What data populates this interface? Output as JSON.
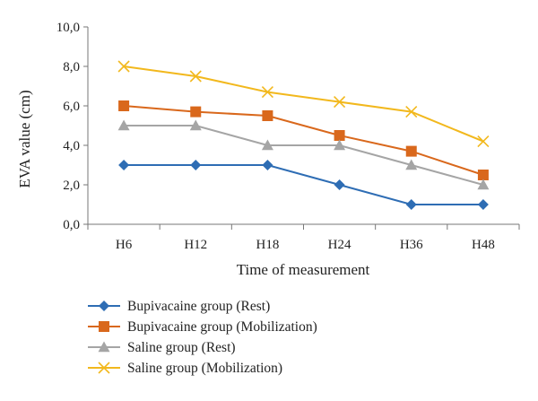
{
  "chart_data": {
    "type": "line",
    "categories": [
      "H6",
      "H12",
      "H18",
      "H24",
      "H36",
      "H48"
    ],
    "xlabel": "Time of measurement",
    "ylabel": "EVA value (cm)",
    "ylim": [
      0,
      10
    ],
    "yticks": [
      "0,0",
      "2,0",
      "4,0",
      "6,0",
      "8,0",
      "10,0"
    ],
    "grid": false,
    "legend_position": "bottom",
    "series": [
      {
        "name": "Bupivacaine group (Rest)",
        "color": "#2E6DB4",
        "marker": "diamond",
        "values": [
          3.0,
          3.0,
          3.0,
          2.0,
          1.0,
          1.0
        ]
      },
      {
        "name": "Bupivacaine group (Mobilization)",
        "color": "#D9681C",
        "marker": "square",
        "values": [
          6.0,
          5.7,
          5.5,
          4.5,
          3.7,
          2.5
        ]
      },
      {
        "name": "Saline group (Rest)",
        "color": "#A5A5A5",
        "marker": "triangle",
        "values": [
          5.0,
          5.0,
          4.0,
          4.0,
          3.0,
          2.0
        ]
      },
      {
        "name": "Saline group (Mobilization)",
        "color": "#F2B81D",
        "marker": "x",
        "values": [
          8.0,
          7.5,
          6.7,
          6.2,
          5.7,
          4.2
        ]
      }
    ]
  }
}
